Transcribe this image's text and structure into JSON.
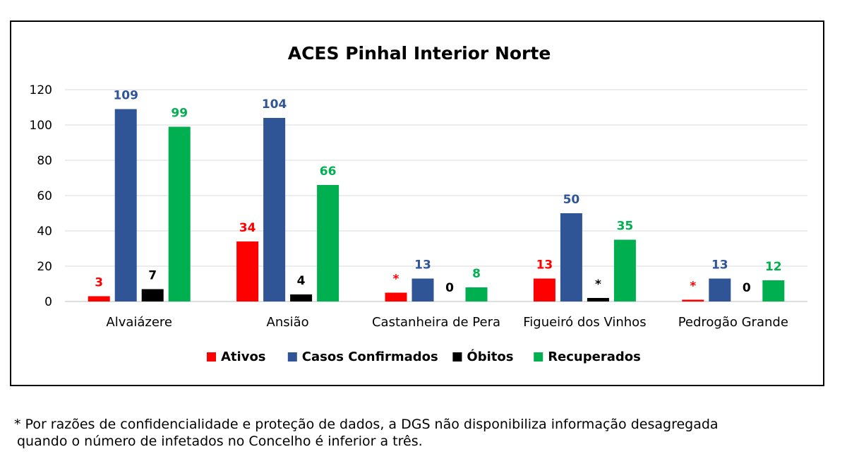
{
  "chart_data": {
    "type": "bar",
    "title": "ACES Pinhal Interior Norte",
    "categories": [
      "Alvaiázere",
      "Ansião",
      "Castanheira de Pera",
      "Figueiró dos Vinhos",
      "Pedrogão Grande"
    ],
    "ylim": [
      0,
      120
    ],
    "yticks": [
      "0",
      "20",
      "40",
      "60",
      "80",
      "100",
      "120"
    ],
    "grid": true,
    "legend_position": "bottom",
    "series": [
      {
        "name": "Ativos",
        "color": "#ff0000",
        "values": [
          3,
          34,
          5,
          13,
          1
        ],
        "labels": [
          "3",
          "34",
          "*",
          "13",
          "*"
        ]
      },
      {
        "name": "Casos Confirmados",
        "color": "#2f5597",
        "values": [
          109,
          104,
          13,
          50,
          13
        ],
        "labels": [
          "109",
          "104",
          "13",
          "50",
          "13"
        ]
      },
      {
        "name": "Óbitos",
        "color": "#000000",
        "values": [
          7,
          4,
          0,
          2,
          0
        ],
        "labels": [
          "7",
          "4",
          "0",
          "*",
          "0"
        ]
      },
      {
        "name": "Recuperados",
        "color": "#00b050",
        "values": [
          99,
          66,
          8,
          35,
          12
        ],
        "labels": [
          "99",
          "66",
          "8",
          "35",
          "12"
        ]
      }
    ]
  },
  "footnote": {
    "line1": "* Por razões de confidencialidade e proteção de dados, a DGS não disponibiliza informação desagregada",
    "line2": "quando o número de infetados no Concelho é inferior a três."
  }
}
